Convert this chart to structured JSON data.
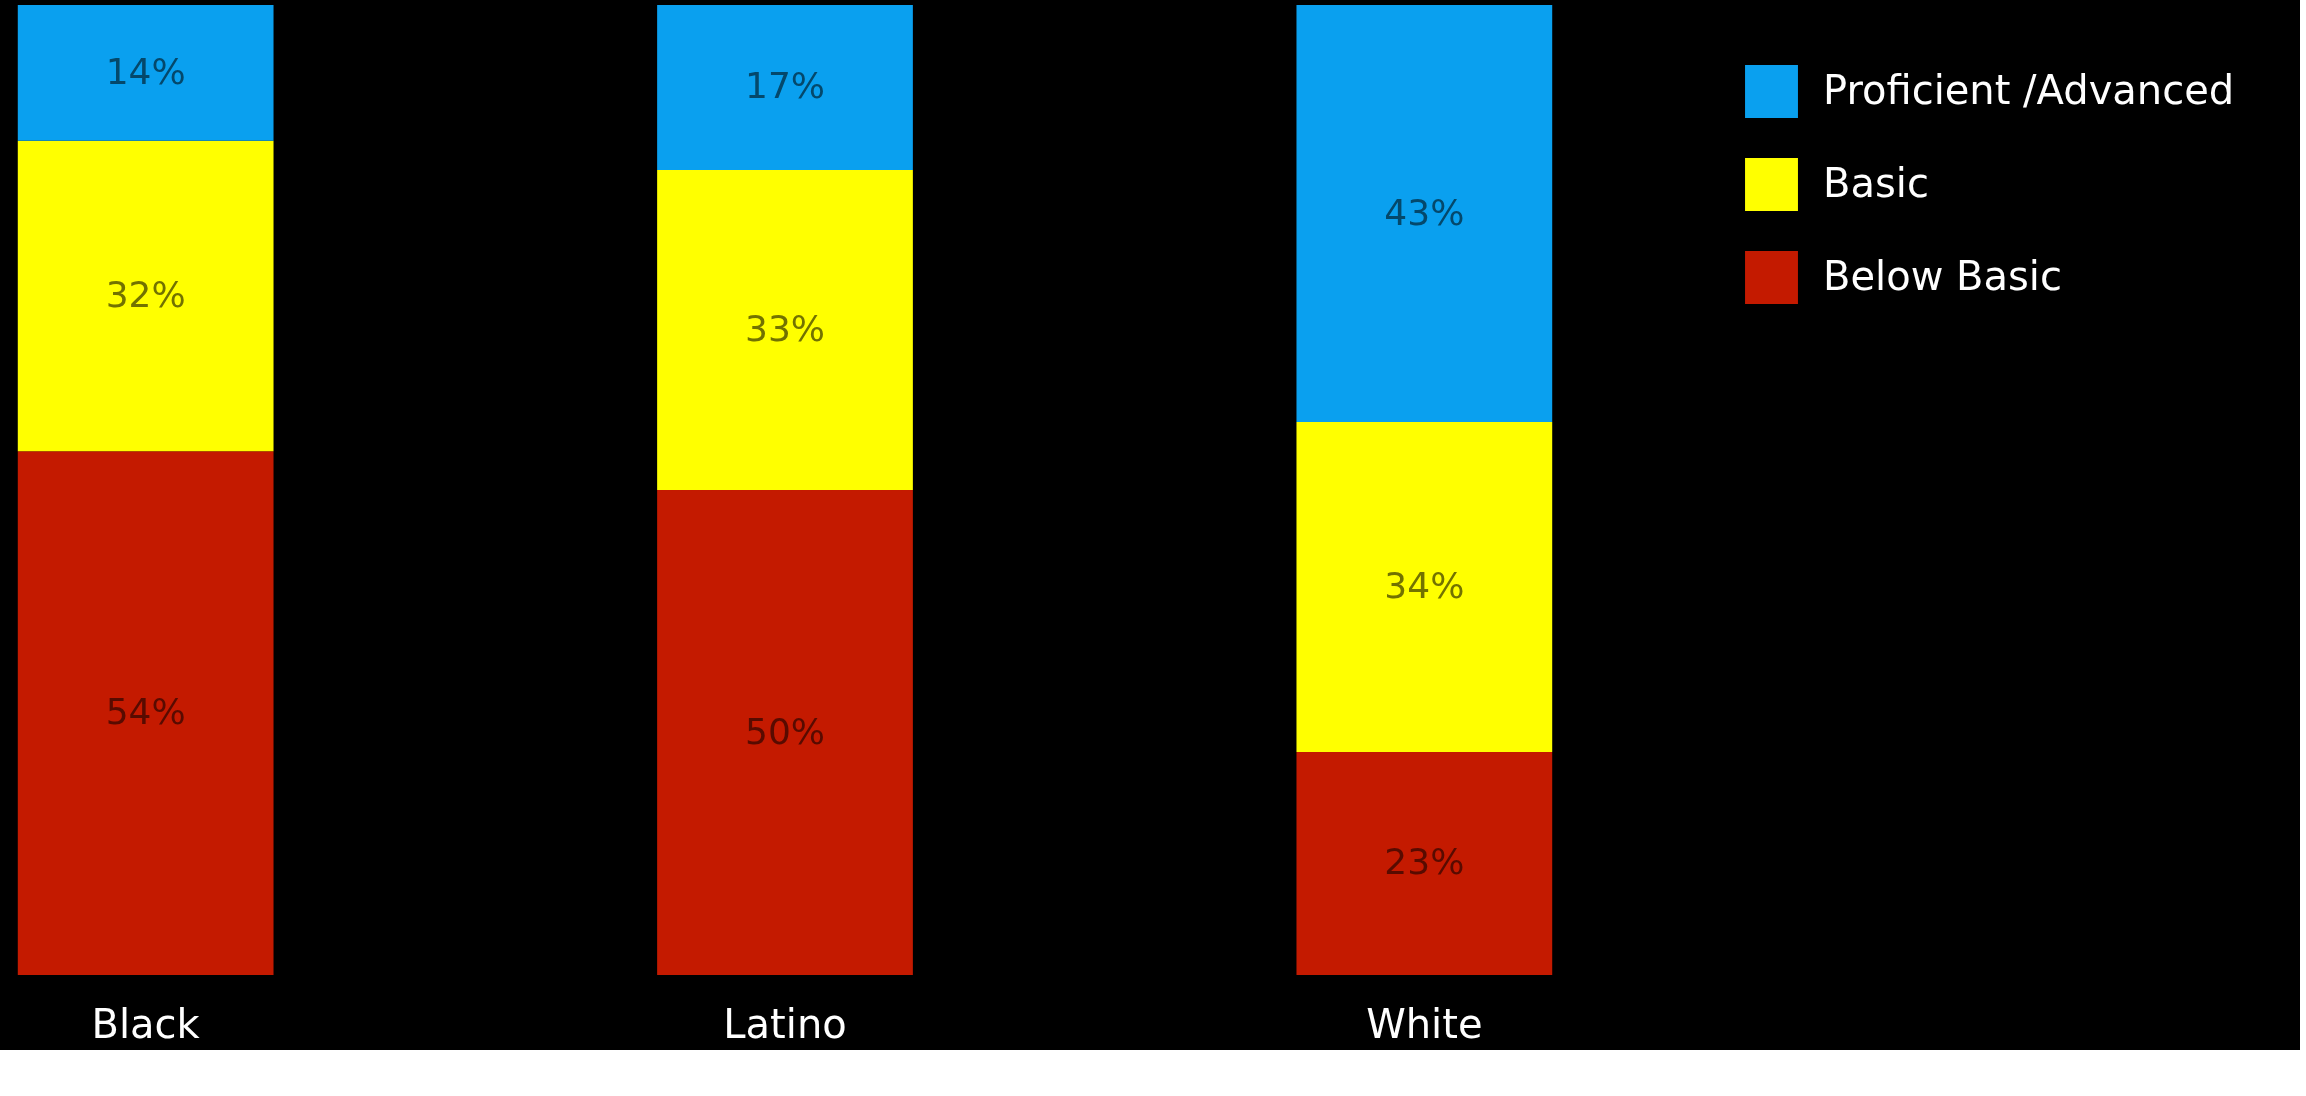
{
  "chart_data": {
    "type": "bar",
    "stacked": true,
    "legend": "top right",
    "categories": [
      "Black",
      "Latino",
      "White"
    ],
    "series": [
      {
        "name": "Below Basic",
        "color": "#c41a00",
        "values": [
          54,
          50,
          23
        ],
        "value_labels": [
          "54%",
          "50%",
          "23%"
        ]
      },
      {
        "name": "Basic",
        "color": "#ffff00",
        "values": [
          32,
          33,
          34
        ],
        "value_labels": [
          "32%",
          "33%",
          "34%"
        ]
      },
      {
        "name": "Proficient /Advanced",
        "color": "#0aa0ef",
        "values": [
          14,
          17,
          43
        ],
        "value_labels": [
          "14%",
          "17%",
          "43%"
        ]
      }
    ]
  }
}
